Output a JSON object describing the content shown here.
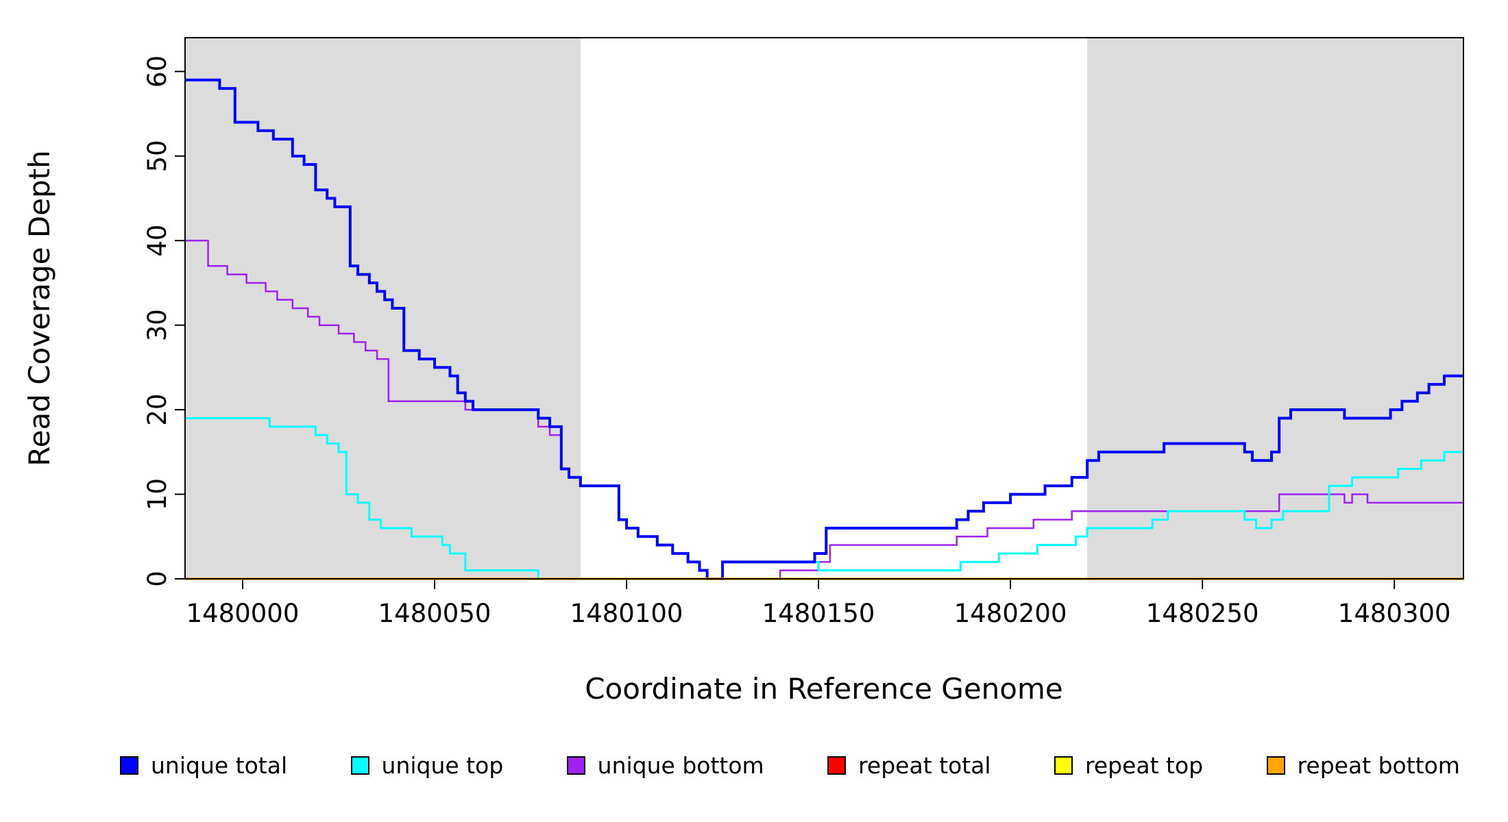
{
  "chart_data": {
    "type": "line",
    "subtype": "step",
    "xlabel": "Coordinate in Reference Genome",
    "ylabel": "Read Coverage Depth",
    "xlim": [
      1479985,
      1480318
    ],
    "ylim": [
      0,
      64
    ],
    "xticks": [
      1480000,
      1480050,
      1480100,
      1480150,
      1480200,
      1480250,
      1480300
    ],
    "yticks": [
      0,
      10,
      20,
      30,
      40,
      50,
      60
    ],
    "grid": false,
    "legend_position": "bottom",
    "shade_color": "#DCDCDC",
    "shaded_regions": [
      {
        "x0": 1479985,
        "x1": 1480088
      },
      {
        "x0": 1480220,
        "x1": 1480318
      }
    ],
    "draw_order": [
      2,
      1,
      0,
      3,
      4,
      5
    ],
    "series": [
      {
        "name": "unique total",
        "color": "#0000FF",
        "width": 4,
        "points": [
          [
            1479985,
            59
          ],
          [
            1479994,
            58
          ],
          [
            1479998,
            54
          ],
          [
            1480004,
            53
          ],
          [
            1480008,
            52
          ],
          [
            1480013,
            50
          ],
          [
            1480016,
            49
          ],
          [
            1480019,
            46
          ],
          [
            1480022,
            45
          ],
          [
            1480024,
            44
          ],
          [
            1480028,
            37
          ],
          [
            1480030,
            36
          ],
          [
            1480033,
            35
          ],
          [
            1480035,
            34
          ],
          [
            1480037,
            33
          ],
          [
            1480039,
            32
          ],
          [
            1480042,
            27
          ],
          [
            1480046,
            26
          ],
          [
            1480050,
            25
          ],
          [
            1480054,
            24
          ],
          [
            1480056,
            22
          ],
          [
            1480058,
            21
          ],
          [
            1480060,
            20
          ],
          [
            1480077,
            19
          ],
          [
            1480080,
            18
          ],
          [
            1480083,
            13
          ],
          [
            1480085,
            12
          ],
          [
            1480088,
            11
          ],
          [
            1480098,
            7
          ],
          [
            1480100,
            6
          ],
          [
            1480103,
            5
          ],
          [
            1480108,
            4
          ],
          [
            1480112,
            3
          ],
          [
            1480116,
            2
          ],
          [
            1480119,
            1
          ],
          [
            1480121,
            0
          ],
          [
            1480125,
            2
          ],
          [
            1480149,
            3
          ],
          [
            1480152,
            6
          ],
          [
            1480186,
            7
          ],
          [
            1480189,
            8
          ],
          [
            1480193,
            9
          ],
          [
            1480200,
            10
          ],
          [
            1480209,
            11
          ],
          [
            1480216,
            12
          ],
          [
            1480220,
            14
          ],
          [
            1480223,
            15
          ],
          [
            1480240,
            16
          ],
          [
            1480261,
            15
          ],
          [
            1480263,
            14
          ],
          [
            1480268,
            15
          ],
          [
            1480270,
            19
          ],
          [
            1480273,
            20
          ],
          [
            1480287,
            19
          ],
          [
            1480299,
            20
          ],
          [
            1480302,
            21
          ],
          [
            1480306,
            22
          ],
          [
            1480309,
            23
          ],
          [
            1480313,
            24
          ]
        ]
      },
      {
        "name": "unique top",
        "color": "#00FFFF",
        "width": 3,
        "points": [
          [
            1479985,
            19
          ],
          [
            1480007,
            18
          ],
          [
            1480019,
            17
          ],
          [
            1480022,
            16
          ],
          [
            1480025,
            15
          ],
          [
            1480027,
            10
          ],
          [
            1480030,
            9
          ],
          [
            1480033,
            7
          ],
          [
            1480036,
            6
          ],
          [
            1480044,
            5
          ],
          [
            1480052,
            4
          ],
          [
            1480054,
            3
          ],
          [
            1480058,
            1
          ],
          [
            1480077,
            0
          ],
          [
            1480125,
            2
          ],
          [
            1480150,
            1
          ],
          [
            1480187,
            2
          ],
          [
            1480197,
            3
          ],
          [
            1480207,
            4
          ],
          [
            1480217,
            5
          ],
          [
            1480220,
            6
          ],
          [
            1480237,
            7
          ],
          [
            1480241,
            8
          ],
          [
            1480261,
            7
          ],
          [
            1480264,
            6
          ],
          [
            1480268,
            7
          ],
          [
            1480271,
            8
          ],
          [
            1480283,
            11
          ],
          [
            1480289,
            12
          ],
          [
            1480301,
            13
          ],
          [
            1480307,
            14
          ],
          [
            1480313,
            15
          ]
        ]
      },
      {
        "name": "unique bottom",
        "color": "#A020F0",
        "width": 2.5,
        "points": [
          [
            1479985,
            40
          ],
          [
            1479991,
            37
          ],
          [
            1479996,
            36
          ],
          [
            1480001,
            35
          ],
          [
            1480006,
            34
          ],
          [
            1480009,
            33
          ],
          [
            1480013,
            32
          ],
          [
            1480017,
            31
          ],
          [
            1480020,
            30
          ],
          [
            1480025,
            29
          ],
          [
            1480029,
            28
          ],
          [
            1480032,
            27
          ],
          [
            1480035,
            26
          ],
          [
            1480038,
            21
          ],
          [
            1480058,
            20
          ],
          [
            1480077,
            18
          ],
          [
            1480080,
            17
          ],
          [
            1480083,
            13
          ],
          [
            1480085,
            12
          ],
          [
            1480088,
            11
          ],
          [
            1480098,
            7
          ],
          [
            1480100,
            6
          ],
          [
            1480103,
            5
          ],
          [
            1480108,
            4
          ],
          [
            1480112,
            3
          ],
          [
            1480116,
            2
          ],
          [
            1480119,
            1
          ],
          [
            1480121,
            0
          ],
          [
            1480140,
            1
          ],
          [
            1480150,
            2
          ],
          [
            1480153,
            4
          ],
          [
            1480186,
            5
          ],
          [
            1480194,
            6
          ],
          [
            1480206,
            7
          ],
          [
            1480216,
            8
          ],
          [
            1480270,
            10
          ],
          [
            1480287,
            9
          ],
          [
            1480289,
            10
          ],
          [
            1480293,
            9
          ]
        ]
      },
      {
        "name": "repeat total",
        "color": "#FF0000",
        "width": 3,
        "points": [
          [
            1479985,
            0
          ]
        ]
      },
      {
        "name": "repeat top",
        "color": "#FFFF00",
        "width": 3,
        "points": [
          [
            1479985,
            0
          ]
        ]
      },
      {
        "name": "repeat bottom",
        "color": "#FFA500",
        "width": 3.5,
        "points": [
          [
            1479985,
            0
          ]
        ]
      }
    ]
  }
}
